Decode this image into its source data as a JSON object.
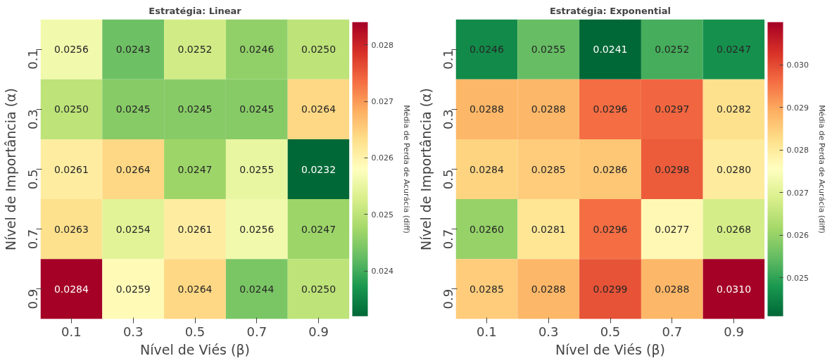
{
  "chart_data": [
    {
      "type": "heatmap",
      "title": "Estratégia: Linear",
      "xlabel": "Nível de Viés (β)",
      "ylabel": "Nível de Importância (α)",
      "clabel": "Média de Perda de Acurácia (diff)",
      "categories": [
        "0.1",
        "0.3",
        "0.5",
        "0.7",
        "0.9"
      ],
      "y_categories": [
        "0.1",
        "0.3",
        "0.5",
        "0.7",
        "0.9"
      ],
      "cells": [
        [
          0.0256,
          0.0243,
          0.0252,
          0.0246,
          0.025
        ],
        [
          0.025,
          0.0245,
          0.0245,
          0.0245,
          0.0264
        ],
        [
          0.0261,
          0.0264,
          0.0247,
          0.0255,
          0.0232
        ],
        [
          0.0263,
          0.0254,
          0.0261,
          0.0256,
          0.0247
        ],
        [
          0.0284,
          0.0259,
          0.0264,
          0.0244,
          0.025
        ]
      ],
      "cell_labels": [
        [
          "0.0256",
          "0.0243",
          "0.0252",
          "0.0246",
          "0.0250"
        ],
        [
          "0.0250",
          "0.0245",
          "0.0245",
          "0.0245",
          "0.0264"
        ],
        [
          "0.0261",
          "0.0264",
          "0.0247",
          "0.0255",
          "0.0232"
        ],
        [
          "0.0263",
          "0.0254",
          "0.0261",
          "0.0256",
          "0.0247"
        ],
        [
          "0.0284",
          "0.0259",
          "0.0264",
          "0.0244",
          "0.0250"
        ]
      ],
      "clim": [
        0.0232,
        0.0284
      ],
      "cticks": [
        0.024,
        0.025,
        0.026,
        0.027,
        0.028
      ]
    },
    {
      "type": "heatmap",
      "title": "Estratégia: Exponential",
      "xlabel": "Nível de Viés (β)",
      "ylabel": "Nível de Importância (α)",
      "clabel": "Média de Perda de Acurácia (diff)",
      "categories": [
        "0.1",
        "0.3",
        "0.5",
        "0.7",
        "0.9"
      ],
      "y_categories": [
        "0.1",
        "0.3",
        "0.5",
        "0.7",
        "0.9"
      ],
      "cells": [
        [
          0.0246,
          0.0255,
          0.0241,
          0.0252,
          0.0247
        ],
        [
          0.0288,
          0.0288,
          0.0296,
          0.0297,
          0.0282
        ],
        [
          0.0284,
          0.0285,
          0.0286,
          0.0298,
          0.028
        ],
        [
          0.026,
          0.0281,
          0.0296,
          0.0277,
          0.0268
        ],
        [
          0.0285,
          0.0288,
          0.0299,
          0.0288,
          0.031
        ]
      ],
      "cell_labels": [
        [
          "0.0246",
          "0.0255",
          "0.0241",
          "0.0252",
          "0.0247"
        ],
        [
          "0.0288",
          "0.0288",
          "0.0296",
          "0.0297",
          "0.0282"
        ],
        [
          "0.0284",
          "0.0285",
          "0.0286",
          "0.0298",
          "0.0280"
        ],
        [
          "0.0260",
          "0.0281",
          "0.0296",
          "0.0277",
          "0.0268"
        ],
        [
          "0.0285",
          "0.0288",
          "0.0299",
          "0.0288",
          "0.0310"
        ]
      ],
      "clim": [
        0.0241,
        0.031
      ],
      "cticks": [
        0.025,
        0.026,
        0.027,
        0.028,
        0.029,
        {
          "value": 0.03,
          "label": "0.030"
        }
      ]
    }
  ]
}
